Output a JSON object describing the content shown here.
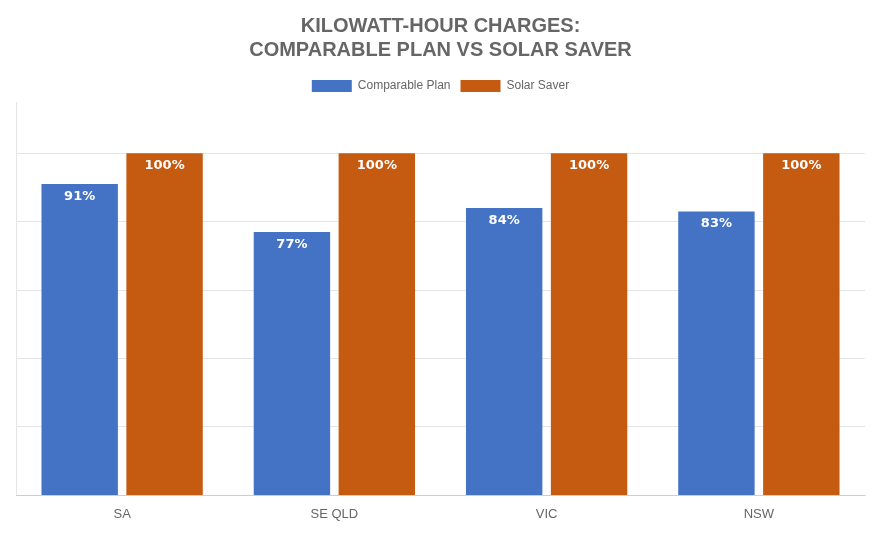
{
  "chart_data": {
    "type": "bar",
    "title": "KILOWATT-HOUR CHARGES:\nCOMPARABLE PLAN VS SOLAR SAVER",
    "categories": [
      "SA",
      "SE QLD",
      "VIC",
      "NSW"
    ],
    "series": [
      {
        "name": "Comparable Plan",
        "color": "#4472C4",
        "values": [
          91,
          77,
          84,
          83
        ],
        "value_labels": [
          "91%",
          "77%",
          "84%",
          "83%"
        ]
      },
      {
        "name": "Solar Saver",
        "color": "#C55A11",
        "values": [
          100,
          100,
          100,
          100
        ],
        "value_labels": [
          "100%",
          "100%",
          "100%",
          "100%"
        ]
      }
    ],
    "ylim": [
      0,
      115
    ],
    "yticks": [
      0,
      20,
      40,
      60,
      80,
      100
    ],
    "grid": true,
    "legend": "top",
    "data_labels": true,
    "tick_labels": "x"
  }
}
